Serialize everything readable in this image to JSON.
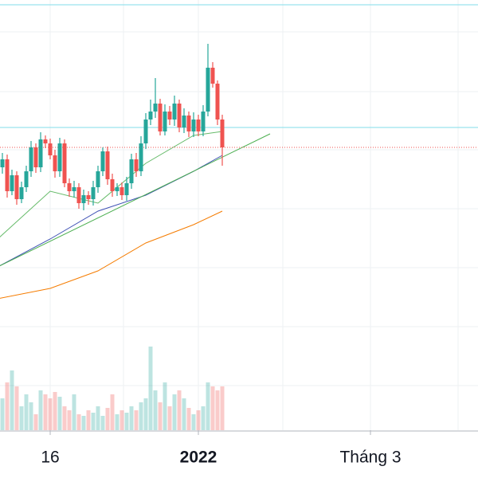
{
  "chart_data": {
    "type": "candlestick",
    "x": [
      0,
      1,
      2,
      3,
      4,
      5,
      6,
      7,
      8,
      9,
      10,
      11,
      12,
      13,
      14,
      15,
      16,
      17,
      18,
      19,
      20,
      21,
      22,
      23,
      24,
      25,
      26,
      27,
      28,
      29,
      30,
      31,
      32,
      33,
      34,
      35,
      36,
      37,
      38,
      39,
      40,
      41,
      42,
      43,
      44,
      45,
      46
    ],
    "open": [
      79,
      80,
      76,
      78,
      75,
      76.5,
      78.5,
      81.5,
      79,
      82.5,
      82,
      80.5,
      78.5,
      82,
      77,
      76,
      76.5,
      74.5,
      75.5,
      75,
      76.5,
      78.5,
      81,
      77.5,
      76,
      76.5,
      75.5,
      77,
      80,
      78.5,
      82,
      85,
      86,
      87,
      83.5,
      86,
      85,
      87,
      84,
      85.5,
      83.5,
      85,
      83.5,
      86,
      91.5,
      89.5,
      85
    ],
    "high": [
      80.8,
      80.6,
      78.7,
      78.5,
      77.2,
      79.2,
      82.3,
      82,
      83.4,
      83,
      82.6,
      81.2,
      82.7,
      82.5,
      77.6,
      77.3,
      77,
      76.2,
      76,
      77.3,
      79.2,
      81.5,
      81.6,
      78.2,
      77,
      77.1,
      77.8,
      80.7,
      80.8,
      82.9,
      85.8,
      87.5,
      90.2,
      87.6,
      86.9,
      86.7,
      88,
      87.5,
      86.4,
      86,
      85.9,
      85.6,
      86.8,
      94.5,
      92.2,
      89.9,
      85.6
    ],
    "low": [
      78.2,
      75.2,
      75.5,
      74.3,
      74.5,
      75.9,
      77.8,
      78.3,
      78.4,
      81.4,
      80,
      77.7,
      77.8,
      76.5,
      75.3,
      75.2,
      73.8,
      73.6,
      74.3,
      74.2,
      75.8,
      77.9,
      76.8,
      75.3,
      75.4,
      74.9,
      74.8,
      76.3,
      77.8,
      77.9,
      81.3,
      84.3,
      85.2,
      83,
      83,
      84.3,
      84.2,
      83.4,
      83.3,
      82.8,
      82.8,
      82.9,
      82.9,
      85.4,
      89,
      84.3,
      79.2
    ],
    "close": [
      80,
      76,
      78,
      75,
      76.5,
      78.5,
      81.5,
      79,
      82.5,
      82,
      80.5,
      78.5,
      82,
      77,
      76,
      76.5,
      74.5,
      75.5,
      75,
      76.5,
      78.5,
      81,
      77.5,
      76,
      76.5,
      75.5,
      77,
      80,
      78.5,
      82,
      85,
      86,
      87,
      83.5,
      86,
      85,
      87,
      84,
      85.5,
      83.5,
      85,
      83.5,
      86,
      91.5,
      89.5,
      85,
      81.5
    ],
    "volume": [
      40,
      60,
      75,
      55,
      30,
      45,
      35,
      20,
      50,
      45,
      40,
      48,
      42,
      30,
      25,
      45,
      20,
      18,
      25,
      22,
      30,
      18,
      28,
      45,
      20,
      25,
      22,
      30,
      25,
      35,
      40,
      105,
      50,
      35,
      60,
      30,
      45,
      50,
      40,
      28,
      20,
      25,
      30,
      60,
      55,
      50,
      55
    ],
    "up_color": "#26a69a",
    "down_color": "#ef5350",
    "lines": [
      {
        "color": "#f57c00",
        "x": [
          -1,
          10,
          20,
          30,
          40,
          46
        ],
        "values": [
          62.5,
          63.8,
          66,
          69.5,
          71.8,
          73.5
        ]
      },
      {
        "color": "#3f51b5",
        "x": [
          -1,
          10,
          20,
          30,
          40,
          46
        ],
        "values": [
          66.5,
          70,
          73.5,
          75.5,
          78.5,
          80.5
        ]
      },
      {
        "color": "#66bb6a",
        "x": [
          -1,
          10,
          20,
          30,
          40,
          46
        ],
        "values": [
          70,
          76,
          74.5,
          79.5,
          83,
          83.5
        ]
      },
      {
        "color": "#4caf50",
        "x": [
          -1,
          56
        ],
        "values": [
          66.5,
          83.2
        ]
      }
    ],
    "hlines": [
      99.4,
      84
    ],
    "xlim": [
      -0.5,
      99.5
    ],
    "ylim": [
      46,
      100
    ],
    "volume_lim": [
      0,
      140
    ],
    "xticks": [
      {
        "value": 10,
        "label": "16"
      },
      {
        "value": 41,
        "label": "2022"
      },
      {
        "value": 77,
        "label": "Tháng 3"
      }
    ]
  }
}
